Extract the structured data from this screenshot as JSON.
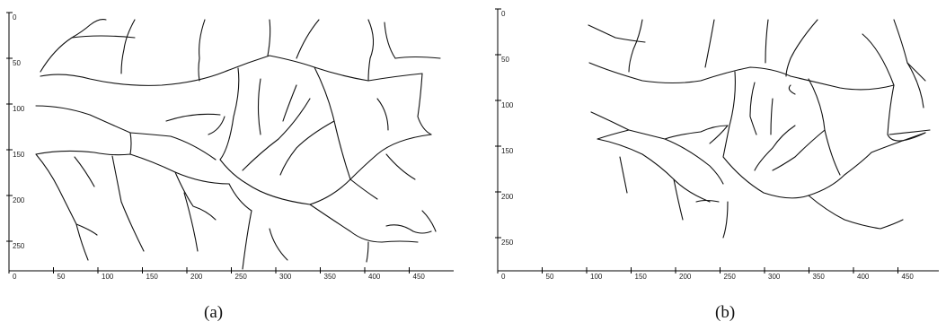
{
  "figure": {
    "panels": [
      {
        "id": "a",
        "caption": "(a)",
        "x_ticks": [
          "0",
          "50",
          "100",
          "150",
          "200",
          "250",
          "300",
          "350",
          "400",
          "450"
        ],
        "y_ticks": [
          "0",
          "50",
          "100",
          "150",
          "200",
          "250"
        ]
      },
      {
        "id": "b",
        "caption": "(b)",
        "x_ticks": [
          "0",
          "50",
          "100",
          "150",
          "200",
          "250",
          "300",
          "350",
          "400",
          "450"
        ],
        "y_ticks": [
          "0",
          "50",
          "100",
          "150",
          "200",
          "250"
        ]
      }
    ]
  }
}
